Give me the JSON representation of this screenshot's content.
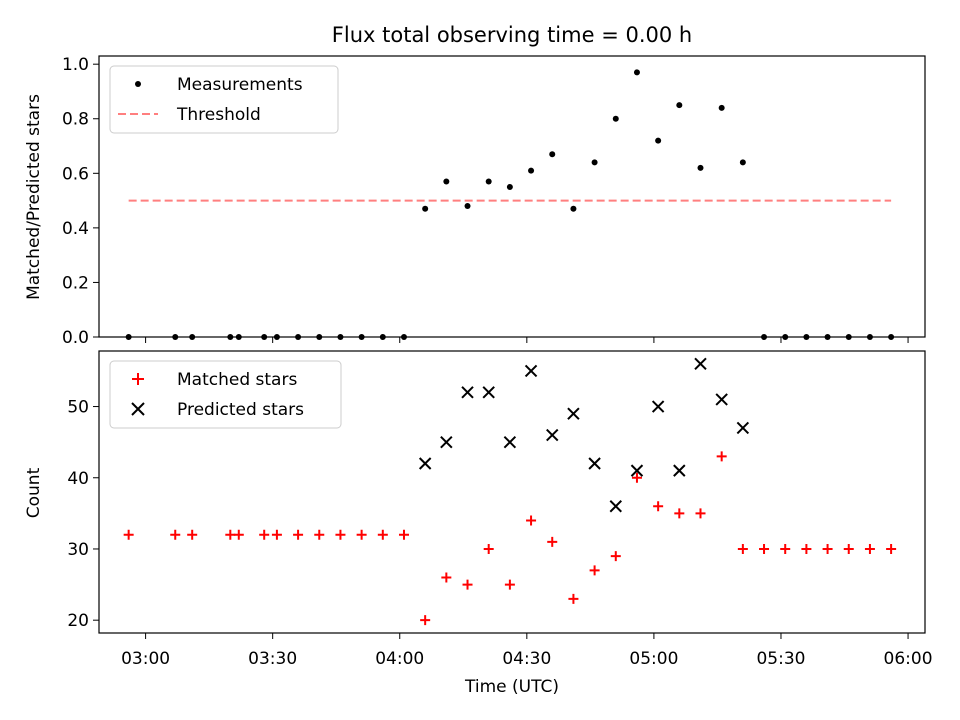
{
  "chart_data": [
    {
      "type": "scatter",
      "title": "Flux total observing time = 0.00 h",
      "xlabel": "",
      "ylabel": "Matched/Predicted stars",
      "xlim": [
        "02:49",
        "06:04"
      ],
      "ylim": [
        0,
        1.03
      ],
      "yticks": [
        "0.0",
        "0.2",
        "0.4",
        "0.6",
        "0.8",
        "1.0"
      ],
      "xticks": [
        "03:00",
        "03:30",
        "04:00",
        "04:30",
        "05:00",
        "05:30",
        "06:00"
      ],
      "legend": "upper-left",
      "series": [
        {
          "name": "Measurements",
          "marker": "dot",
          "color": "#000000",
          "points": [
            [
              "02:56",
              0
            ],
            [
              "03:07",
              0
            ],
            [
              "03:11",
              0
            ],
            [
              "03:20",
              0
            ],
            [
              "03:22",
              0
            ],
            [
              "03:28",
              0
            ],
            [
              "03:31",
              0
            ],
            [
              "03:36",
              0
            ],
            [
              "03:41",
              0
            ],
            [
              "03:46",
              0
            ],
            [
              "03:51",
              0
            ],
            [
              "03:56",
              0
            ],
            [
              "04:01",
              0
            ],
            [
              "04:06",
              0.47
            ],
            [
              "04:11",
              0.57
            ],
            [
              "04:16",
              0.48
            ],
            [
              "04:21",
              0.57
            ],
            [
              "04:26",
              0.55
            ],
            [
              "04:31",
              0.61
            ],
            [
              "04:36",
              0.67
            ],
            [
              "04:41",
              0.47
            ],
            [
              "04:46",
              0.64
            ],
            [
              "04:51",
              0.8
            ],
            [
              "04:56",
              0.97
            ],
            [
              "05:01",
              0.72
            ],
            [
              "05:06",
              0.85
            ],
            [
              "05:11",
              0.62
            ],
            [
              "05:16",
              0.84
            ],
            [
              "05:21",
              0.64
            ],
            [
              "05:26",
              0
            ],
            [
              "05:31",
              0
            ],
            [
              "05:36",
              0
            ],
            [
              "05:41",
              0
            ],
            [
              "05:46",
              0
            ],
            [
              "05:51",
              0
            ],
            [
              "05:56",
              0
            ]
          ]
        },
        {
          "name": "Threshold",
          "marker": "dashed-line",
          "color": "#ff7f7f",
          "points": [
            [
              "02:56",
              0.5
            ],
            [
              "05:56",
              0.5
            ]
          ]
        }
      ]
    },
    {
      "type": "scatter",
      "title": "",
      "xlabel": "Time (UTC)",
      "ylabel": "Count",
      "xlim": [
        "02:49",
        "06:04"
      ],
      "ylim": [
        18.2,
        57.8
      ],
      "yticks": [
        "20",
        "30",
        "40",
        "50"
      ],
      "xticks": [
        "03:00",
        "03:30",
        "04:00",
        "04:30",
        "05:00",
        "05:30",
        "06:00"
      ],
      "legend": "upper-left",
      "series": [
        {
          "name": "Matched stars",
          "marker": "plus",
          "color": "#ff0000",
          "points": [
            [
              "02:56",
              32
            ],
            [
              "03:07",
              32
            ],
            [
              "03:11",
              32
            ],
            [
              "03:20",
              32
            ],
            [
              "03:22",
              32
            ],
            [
              "03:28",
              32
            ],
            [
              "03:31",
              32
            ],
            [
              "03:36",
              32
            ],
            [
              "03:41",
              32
            ],
            [
              "03:46",
              32
            ],
            [
              "03:51",
              32
            ],
            [
              "03:56",
              32
            ],
            [
              "04:01",
              32
            ],
            [
              "04:06",
              20
            ],
            [
              "04:11",
              26
            ],
            [
              "04:16",
              25
            ],
            [
              "04:21",
              30
            ],
            [
              "04:26",
              25
            ],
            [
              "04:31",
              34
            ],
            [
              "04:36",
              31
            ],
            [
              "04:41",
              23
            ],
            [
              "04:46",
              27
            ],
            [
              "04:51",
              29
            ],
            [
              "04:56",
              40
            ],
            [
              "05:01",
              36
            ],
            [
              "05:06",
              35
            ],
            [
              "05:11",
              35
            ],
            [
              "05:16",
              43
            ],
            [
              "05:21",
              30
            ],
            [
              "05:26",
              30
            ],
            [
              "05:31",
              30
            ],
            [
              "05:36",
              30
            ],
            [
              "05:41",
              30
            ],
            [
              "05:46",
              30
            ],
            [
              "05:51",
              30
            ],
            [
              "05:56",
              30
            ]
          ]
        },
        {
          "name": "Predicted stars",
          "marker": "x",
          "color": "#000000",
          "points": [
            [
              "04:06",
              42
            ],
            [
              "04:11",
              45
            ],
            [
              "04:16",
              52
            ],
            [
              "04:21",
              52
            ],
            [
              "04:26",
              45
            ],
            [
              "04:31",
              55
            ],
            [
              "04:36",
              46
            ],
            [
              "04:41",
              49
            ],
            [
              "04:46",
              42
            ],
            [
              "04:51",
              36
            ],
            [
              "04:56",
              41
            ],
            [
              "05:01",
              50
            ],
            [
              "05:06",
              41
            ],
            [
              "05:11",
              56
            ],
            [
              "05:16",
              51
            ],
            [
              "05:21",
              47
            ]
          ]
        }
      ]
    }
  ]
}
